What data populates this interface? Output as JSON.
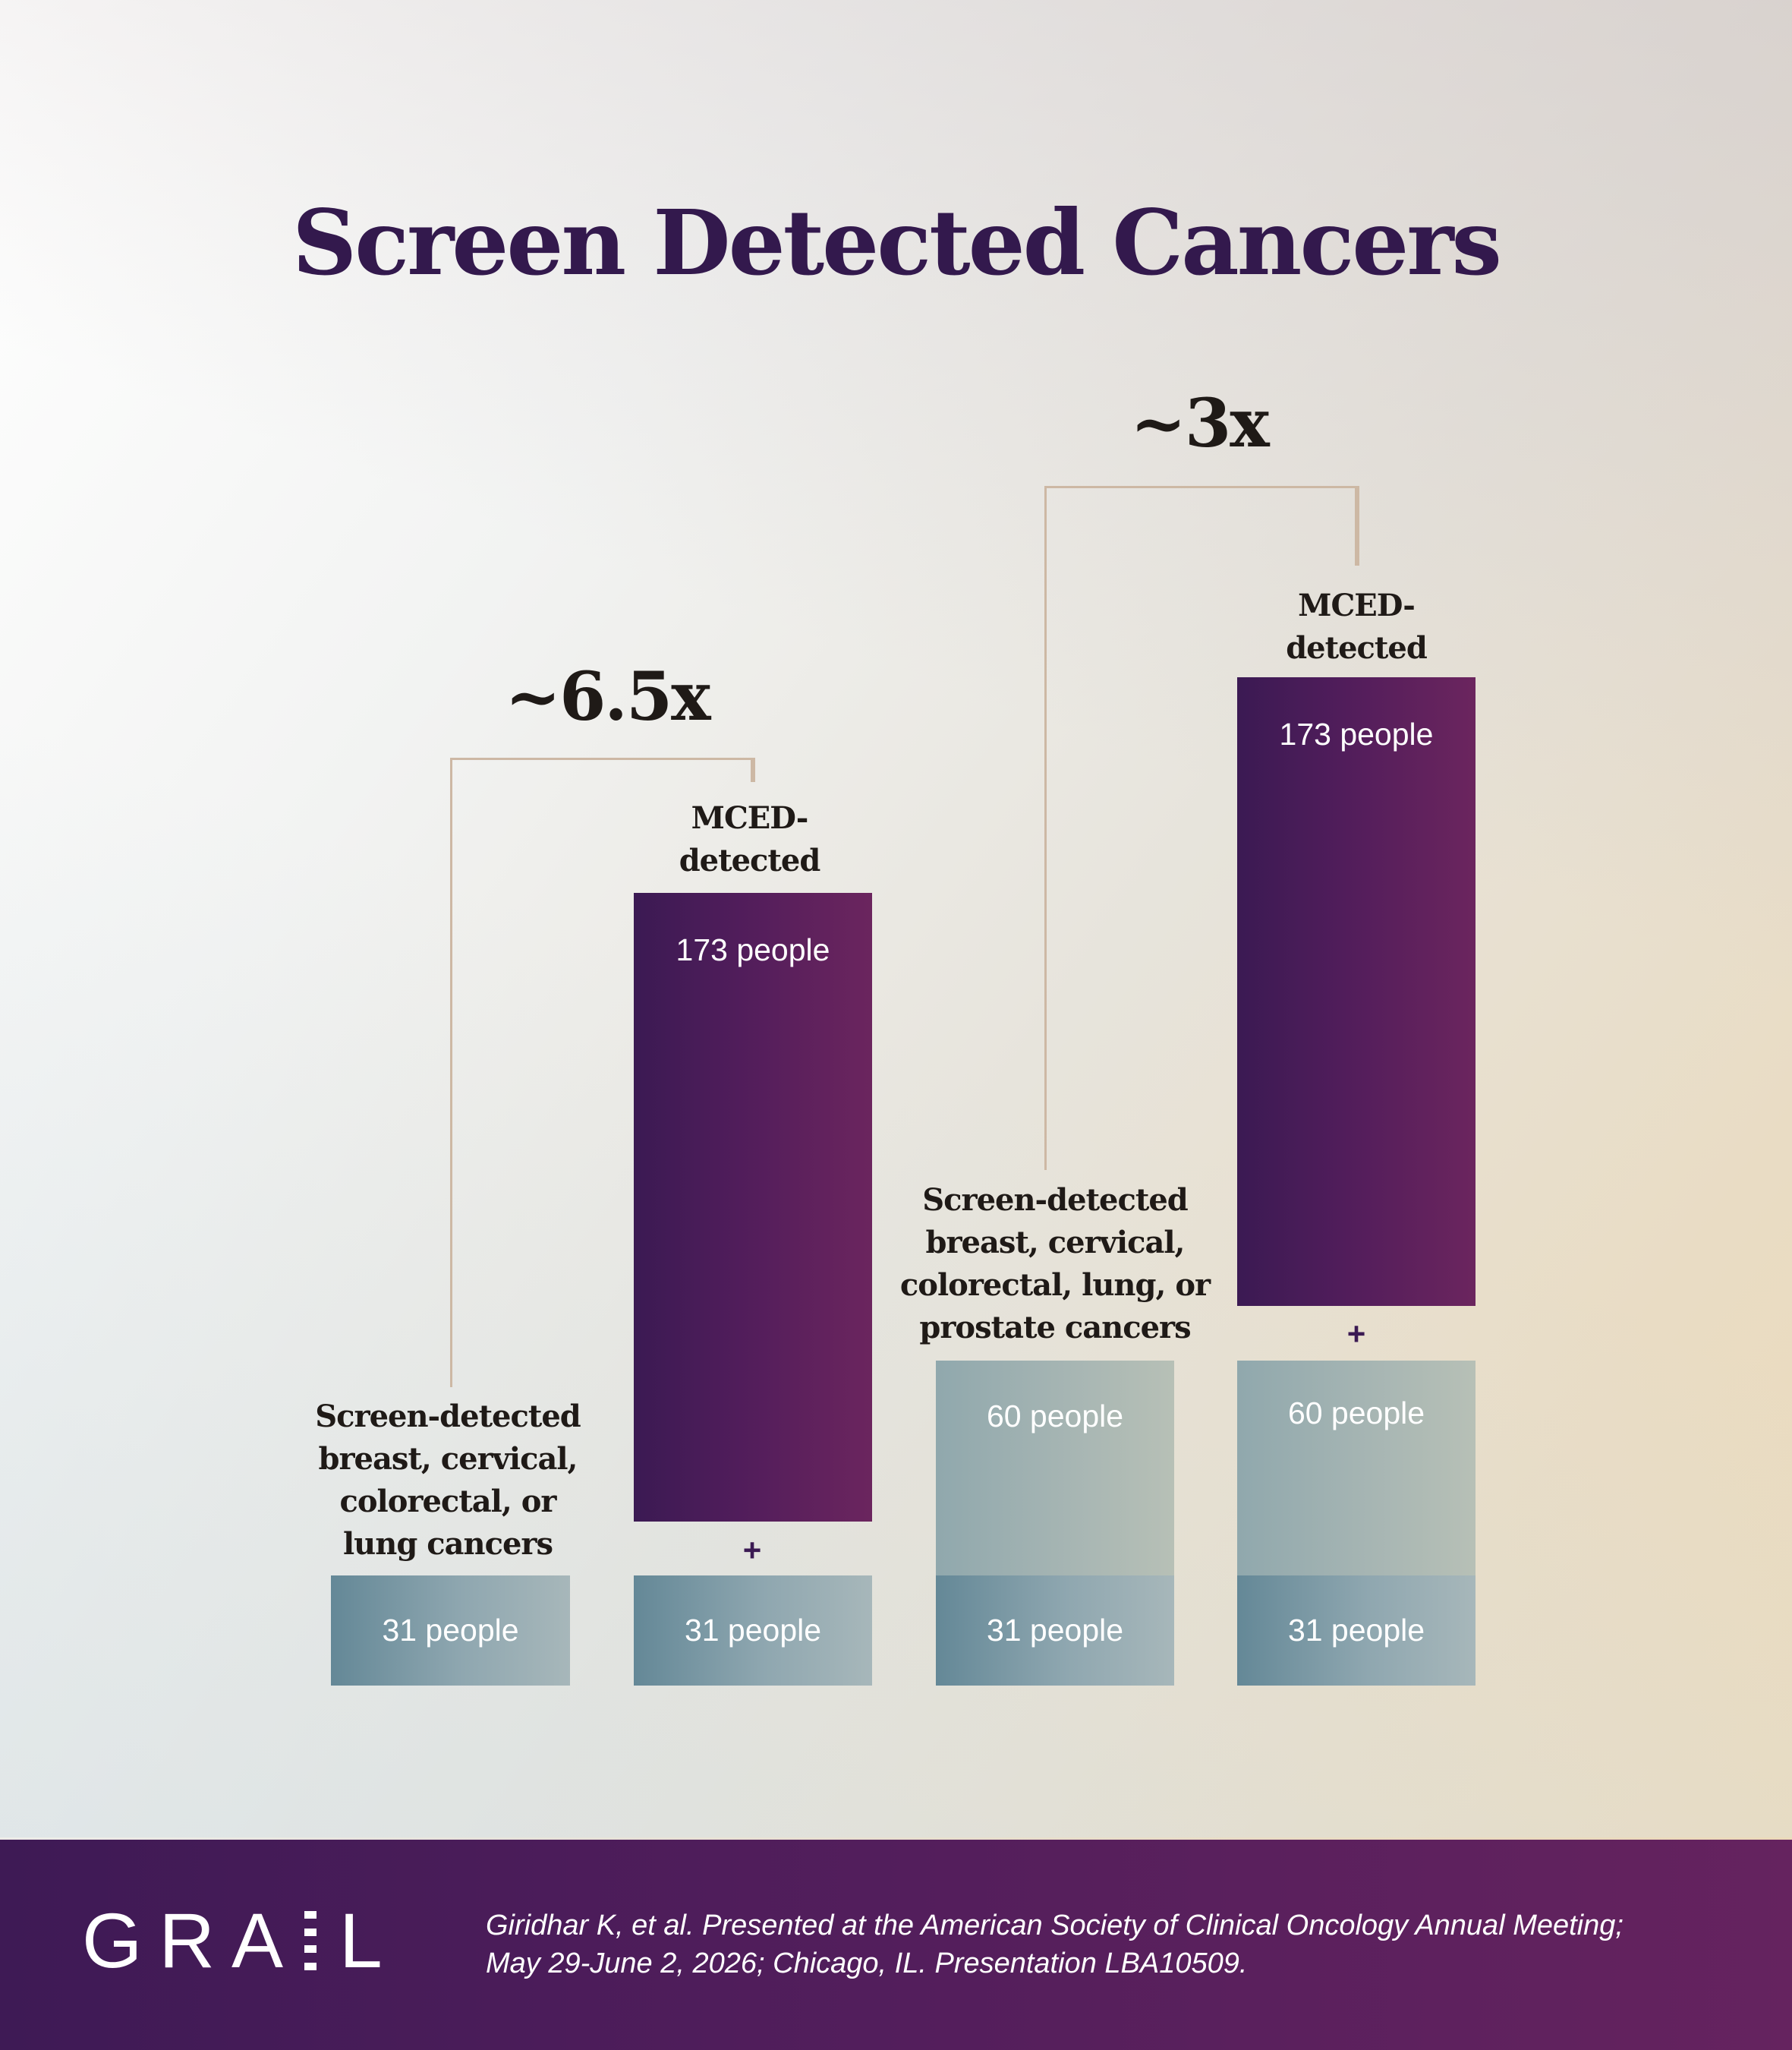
{
  "title": "Screen Detected Cancers",
  "chart_data": {
    "type": "bar",
    "title": "Screen Detected Cancers",
    "unit": "people",
    "groups": [
      {
        "multiplier": "~6.5x",
        "bars": [
          {
            "caption": [
              "Screen-detected",
              "breast, cervical,",
              "colorectal, or",
              "lung cancers"
            ],
            "segments": [
              {
                "value": 31,
                "label": "31 people"
              }
            ]
          },
          {
            "caption": [
              "MCED-",
              "detected"
            ],
            "segments": [
              {
                "value": 31,
                "label": "31 people"
              },
              {
                "value": 173,
                "label": "173 people"
              }
            ],
            "separator": "+"
          }
        ]
      },
      {
        "multiplier": "~3x",
        "bars": [
          {
            "caption": [
              "Screen-detected",
              "breast, cervical,",
              "colorectal, lung, or",
              "prostate cancers"
            ],
            "segments": [
              {
                "value": 31,
                "label": "31 people"
              },
              {
                "value": 60,
                "label": "60 people"
              }
            ]
          },
          {
            "caption": [
              "MCED-",
              "detected"
            ],
            "segments": [
              {
                "value": 31,
                "label": "31 people"
              },
              {
                "value": 60,
                "label": "60 people"
              },
              {
                "value": 173,
                "label": "173 people"
              }
            ],
            "separator": "+"
          }
        ]
      }
    ]
  },
  "colors": {
    "title": "#33194d",
    "purple_bar": "#511d5b",
    "teal_bar": "#648897",
    "bracket": "#cdb8a4"
  },
  "footer": {
    "logo": "GRAIL",
    "logo_icon": "grail-logo",
    "citation_line1": "Giridhar K, et al. Presented at the American Society of Clinical Oncology Annual Meeting;",
    "citation_line2": "May 29-June 2, 2026; Chicago, IL. Presentation LBA10509."
  }
}
